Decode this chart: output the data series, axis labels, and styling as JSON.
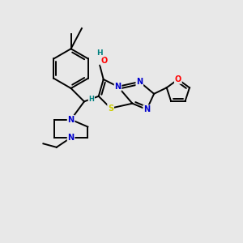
{
  "bg_color": "#e8e8e8",
  "bond_color": "#000000",
  "bond_width": 1.4,
  "atom_colors": {
    "N": "#0000cc",
    "O": "#ff0000",
    "S": "#cccc00",
    "H": "#008080",
    "C": "#000000"
  },
  "figsize": [
    3.0,
    3.0
  ],
  "dpi": 100
}
